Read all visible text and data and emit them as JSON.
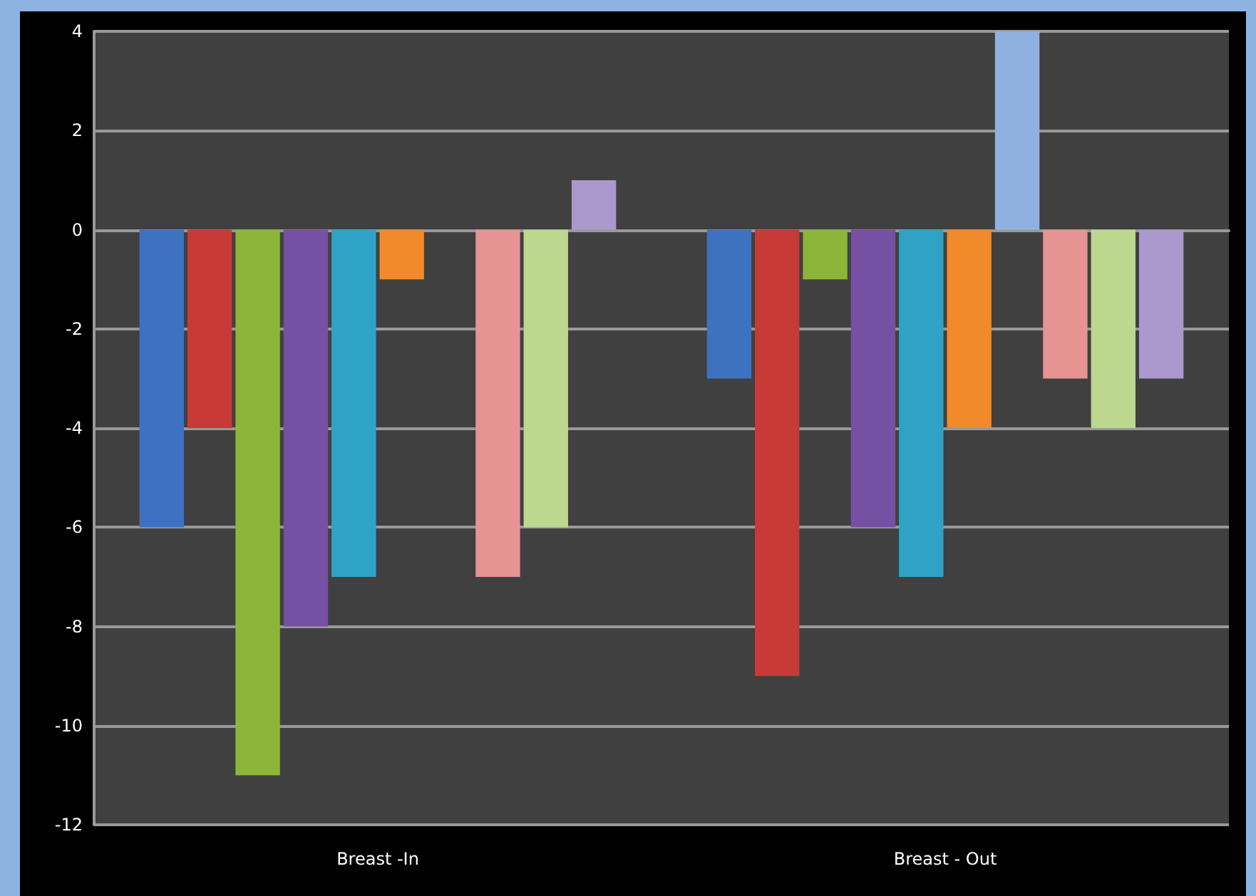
{
  "chart_data": {
    "type": "bar",
    "categories": [
      "Breast -In",
      "Breast - Out"
    ],
    "series": [
      {
        "color": "#3d72c0",
        "values": [
          -6,
          -3
        ]
      },
      {
        "color": "#c73a36",
        "values": [
          -4,
          -9
        ]
      },
      {
        "color": "#8db53a",
        "values": [
          -11,
          -1
        ]
      },
      {
        "color": "#7650a3",
        "values": [
          -8,
          -6
        ]
      },
      {
        "color": "#2fa3c6",
        "values": [
          -7,
          -7
        ]
      },
      {
        "color": "#f08a2a",
        "values": [
          -1,
          -4
        ]
      },
      {
        "color": "#8fb1df",
        "values": [
          null,
          4
        ]
      },
      {
        "color": "#e69393",
        "values": [
          -7,
          -3
        ]
      },
      {
        "color": "#bcd88e",
        "values": [
          -6,
          -4
        ]
      },
      {
        "color": "#ab98cc",
        "values": [
          1,
          -3
        ]
      }
    ],
    "ylim": [
      -12,
      4
    ],
    "yticks": [
      -12,
      -10,
      -8,
      -6,
      -4,
      -2,
      0,
      2,
      4
    ],
    "grid": "y"
  }
}
